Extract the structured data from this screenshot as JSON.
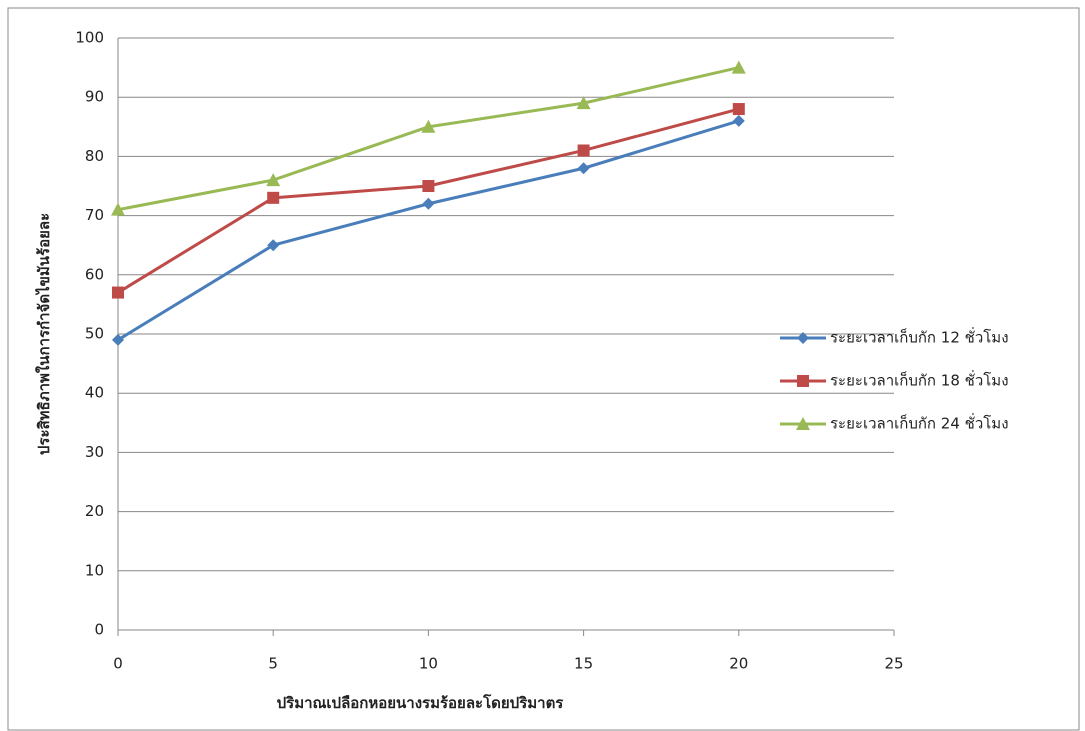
{
  "chart_data": {
    "type": "line",
    "x_label": "ปริมาณเปลือกหอยนางรมร้อยละโดยปริมาตร",
    "y_label": "ประสิทธิภาพในการกำจัดไขมันร้อยละ",
    "x": [
      0,
      5,
      10,
      15,
      20
    ],
    "series": [
      {
        "name": "ระยะเวลาเก็บกัก 12 ชั่วโมง",
        "color": "#4a7ebb",
        "marker": "diamond",
        "values": [
          49,
          65,
          72,
          78,
          86
        ]
      },
      {
        "name": "ระยะเวลาเก็บกัก 18 ชั่วโมง",
        "color": "#be4b48",
        "marker": "square",
        "values": [
          57,
          73,
          75,
          81,
          88
        ]
      },
      {
        "name": "ระยะเวลาเก็บกัก 24 ชั่วโมง",
        "color": "#98b954",
        "marker": "triangle",
        "values": [
          71,
          76,
          85,
          89,
          95
        ]
      }
    ],
    "xlim": [
      0,
      25
    ],
    "xticks": [
      0,
      5,
      10,
      15,
      20,
      25
    ],
    "ylim": [
      0,
      100
    ],
    "yticks": [
      0,
      10,
      20,
      30,
      40,
      50,
      60,
      70,
      80,
      90,
      100
    ],
    "grid": true,
    "legend": "right"
  }
}
